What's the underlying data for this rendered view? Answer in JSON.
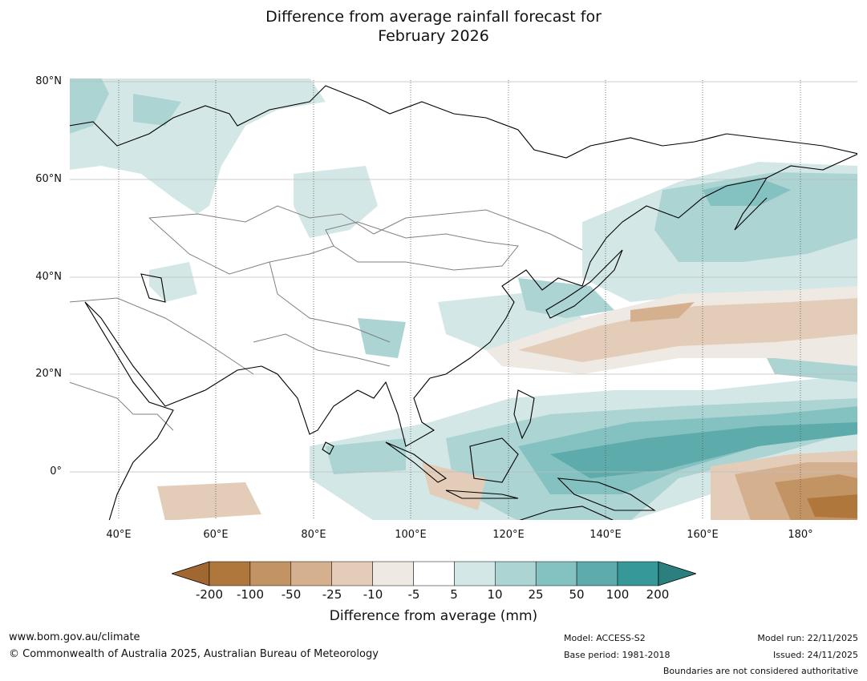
{
  "title": {
    "line1": "Difference from average rainfall forecast for",
    "line2": "February 2026"
  },
  "map": {
    "latitude_labels": [
      "80°N",
      "60°N",
      "40°N",
      "20°N",
      "0°"
    ],
    "longitude_labels": [
      "40°E",
      "60°E",
      "80°E",
      "100°E",
      "120°E",
      "140°E",
      "160°E",
      "180°"
    ],
    "colors": {
      "ocean": "#ffffff",
      "land_outline": "#000000",
      "borders": "#808080",
      "gridline": "#bdbdbd"
    }
  },
  "colorbar": {
    "label": "Difference from average (mm)",
    "ticks": [
      "-200",
      "-100",
      "-50",
      "-25",
      "-10",
      "-5",
      "5",
      "10",
      "25",
      "50",
      "100",
      "200"
    ],
    "colors": [
      "#a06830",
      "#b0773d",
      "#c39463",
      "#d5b08f",
      "#e3cdb8",
      "#efe9e3",
      "#ffffff",
      "#d3e8e6",
      "#abd4d3",
      "#84c1c1",
      "#5dabab",
      "#369898",
      "#2b7f7f"
    ]
  },
  "footer": {
    "website": "www.bom.gov.au/climate",
    "copyright": "© Commonwealth of Australia 2025, Australian Bureau of Meteorology",
    "model": "Model: ACCESS-S2",
    "base_period": "Base period: 1981-2018",
    "model_run": "Model run: 22/11/2025",
    "issued": "Issued: 24/11/2025",
    "disclaimer": "Boundaries are not considered authoritative"
  }
}
